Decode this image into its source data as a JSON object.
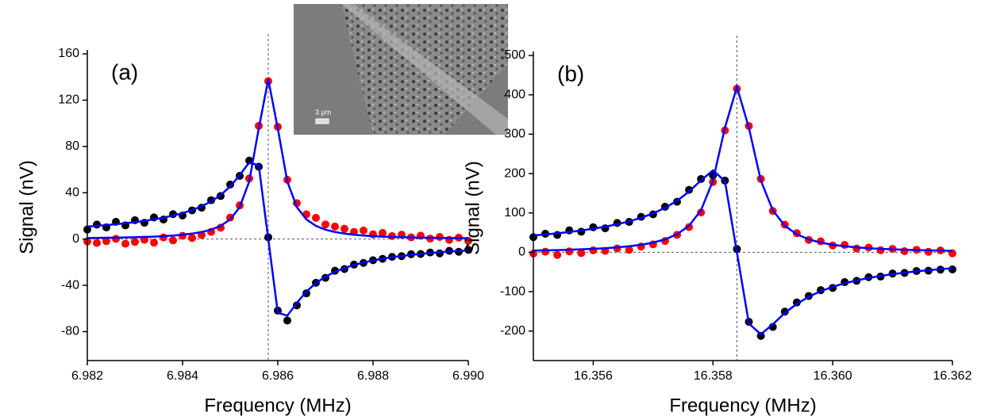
{
  "chart_data": [
    {
      "type": "scatter",
      "panel_label": "(a)",
      "x_label": "Frequency (MHz)",
      "y_label": "Signal (nV)",
      "inset_scale_label": "3 μm",
      "vline": 6.9858,
      "xlim": [
        6.982,
        6.99
      ],
      "ylim": [
        -105,
        160
      ],
      "xticks": [
        6.982,
        6.984,
        6.986,
        6.988,
        {
          "value": 6.99,
          "label": "6.990"
        }
      ],
      "yticks": [
        -80,
        -40,
        0,
        40,
        80,
        120,
        160
      ],
      "x": [
        6.982,
        6.9822,
        6.9824,
        6.9826,
        6.9828,
        6.983,
        6.9832,
        6.9834,
        6.9836,
        6.9838,
        6.984,
        6.9842,
        6.9844,
        6.9846,
        6.9848,
        6.985,
        6.9852,
        6.9854,
        6.9856,
        6.9858,
        6.986,
        6.9862,
        6.9864,
        6.9866,
        6.9868,
        6.987,
        6.9872,
        6.9874,
        6.9876,
        6.9878,
        6.988,
        6.9882,
        6.9884,
        6.9886,
        6.9888,
        6.989,
        6.9892,
        6.9894,
        6.9896,
        6.9898,
        6.99
      ],
      "series": [
        {
          "style": "markers",
          "color": "#ff0000",
          "values": [
            -2.1,
            -3.4,
            -1.8,
            0.2,
            -4.0,
            -2.5,
            -0.6,
            -3.1,
            1.4,
            -1.2,
            2.8,
            0.9,
            3.5,
            6.2,
            9.8,
            18.5,
            29.1,
            52.3,
            97.8,
            136.4,
            97.0,
            51.2,
            31.0,
            21.4,
            18.3,
            12.6,
            10.8,
            8.9,
            6.2,
            7.4,
            4.1,
            5.3,
            2.6,
            3.8,
            1.5,
            2.9,
            0.4,
            1.8,
            -0.7,
            1.2,
            -1.5
          ]
        },
        {
          "style": "markers",
          "color": "#000000",
          "values": [
            8.2,
            12.5,
            10.1,
            14.9,
            11.8,
            16.3,
            14.1,
            18.7,
            16.9,
            21.5,
            20.3,
            24.8,
            27.1,
            33.6,
            37.2,
            47.1,
            54.6,
            67.8,
            62.5,
            1.5,
            -61.8,
            -70.4,
            -57.3,
            -46.9,
            -37.8,
            -33.5,
            -27.4,
            -25.9,
            -22.1,
            -20.6,
            -18.3,
            -17.1,
            -15.4,
            -14.8,
            -13.1,
            -12.9,
            -11.6,
            -12.4,
            -10.2,
            -11.0,
            -9.3
          ]
        },
        {
          "style": "line",
          "color": "#0000ff",
          "values": [
            0.9,
            1.0,
            1.1,
            1.2,
            1.4,
            1.6,
            1.8,
            2.1,
            2.5,
            3.0,
            3.7,
            4.7,
            6.1,
            8.1,
            11.4,
            17.0,
            27.6,
            49.7,
            95.5,
            138,
            95.5,
            49.7,
            27.6,
            17.0,
            11.4,
            8.1,
            6.1,
            4.7,
            3.7,
            3.0,
            2.5,
            2.1,
            1.8,
            1.6,
            1.4,
            1.2,
            1.1,
            1.0,
            0.9,
            0.8,
            0.7
          ]
        },
        {
          "style": "line",
          "color": "#0000ff",
          "values": [
            10.8,
            11.4,
            12.1,
            12.8,
            13.7,
            14.6,
            15.7,
            17.0,
            18.5,
            20.3,
            22.4,
            25.0,
            28.3,
            32.5,
            38.0,
            45.4,
            55.2,
            66.2,
            63.7,
            0,
            -63.7,
            -66.2,
            -55.2,
            -45.4,
            -38.0,
            -32.5,
            -28.3,
            -25.0,
            -22.4,
            -20.3,
            -18.5,
            -17.0,
            -15.7,
            -14.6,
            -13.7,
            -12.8,
            -12.1,
            -11.4,
            -10.8,
            -10.3,
            -9.8
          ]
        }
      ]
    },
    {
      "type": "scatter",
      "panel_label": "(b)",
      "x_label": "Frequency (MHz)",
      "y_label": "Signal (nV)",
      "vline": 16.3584,
      "xlim": [
        16.355,
        16.362
      ],
      "ylim": [
        -275,
        500
      ],
      "xticks": [
        16.356,
        16.358,
        {
          "value": 16.36,
          "label": "16.360"
        },
        16.362
      ],
      "yticks": [
        -200,
        -100,
        0,
        100,
        200,
        300,
        400,
        500
      ],
      "x": [
        16.355,
        16.3552,
        16.3554,
        16.3556,
        16.3558,
        16.356,
        16.3562,
        16.3564,
        16.3566,
        16.3568,
        16.357,
        16.3572,
        16.3574,
        16.3576,
        16.3578,
        16.358,
        16.3582,
        16.3584,
        16.3586,
        16.3588,
        16.359,
        16.3592,
        16.3594,
        16.3596,
        16.3598,
        16.36,
        16.3602,
        16.3604,
        16.3606,
        16.3608,
        16.361,
        16.3612,
        16.3614,
        16.3616,
        16.3618,
        16.362
      ],
      "series": [
        {
          "style": "markers",
          "color": "#ff0000",
          "values": [
            -3.2,
            1.5,
            -6.8,
            2.4,
            -1.9,
            5.1,
            3.6,
            9.8,
            6.2,
            14.5,
            20.1,
            28.7,
            44.3,
            63.9,
            101.2,
            178.5,
            309.7,
            415.6,
            320.8,
            186.4,
            104.9,
            70.2,
            48.5,
            31.6,
            27.9,
            17.4,
            18.8,
            9.6,
            12.1,
            5.3,
            8.7,
            2.9,
            6.4,
            1.2,
            4.8,
            -2.6
          ]
        },
        {
          "style": "markers",
          "color": "#000000",
          "values": [
            38.5,
            47.2,
            44.1,
            55.8,
            52.3,
            63.7,
            61.0,
            74.5,
            77.2,
            90.1,
            96.4,
            115.8,
            128.3,
            158.6,
            186.2,
            195.4,
            182.1,
            8.4,
            -176.5,
            -212.3,
            -189.6,
            -150.8,
            -127.4,
            -110.9,
            -96.2,
            -90.5,
            -75.8,
            -72.4,
            -63.1,
            -61.7,
            -53.9,
            -52.4,
            -47.6,
            -46.8,
            -44.1,
            -43.5
          ]
        },
        {
          "style": "line",
          "color": "#0000ff",
          "values": [
            4.4,
            5.0,
            5.6,
            6.5,
            7.5,
            8.8,
            10.4,
            12.5,
            15.3,
            19.2,
            24.7,
            32.9,
            45.8,
            67.5,
            106.6,
            182.1,
            316.5,
            420,
            316.5,
            182.1,
            106.6,
            67.5,
            45.8,
            32.9,
            24.7,
            19.2,
            15.3,
            12.5,
            10.4,
            8.8,
            7.5,
            6.5,
            5.6,
            5.0,
            4.4,
            3.9
          ]
        },
        {
          "style": "line",
          "color": "#0000ff",
          "values": [
            42.8,
            45.4,
            48.3,
            51.7,
            55.5,
            60.0,
            65.2,
            71.3,
            78.7,
            87.7,
            98.8,
            112.9,
            131.0,
            154.2,
            182.8,
            208.2,
            180.9,
            0,
            -180.9,
            -208.2,
            -182.8,
            -154.2,
            -131.0,
            -112.9,
            -98.8,
            -87.7,
            -78.7,
            -71.3,
            -65.2,
            -60.0,
            -55.5,
            -51.7,
            -48.3,
            -45.4,
            -42.8,
            -40.5
          ]
        }
      ]
    }
  ]
}
